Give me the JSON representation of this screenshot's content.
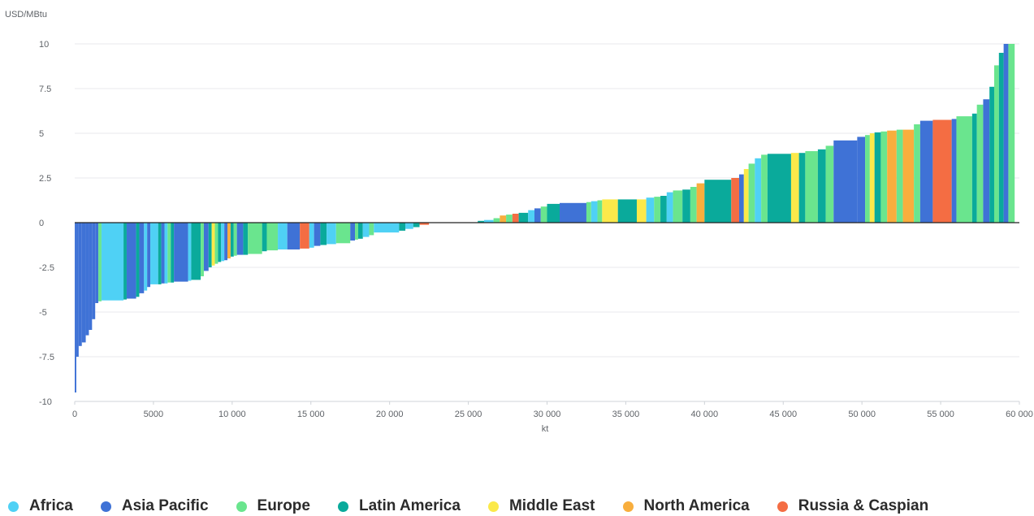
{
  "chart_data": {
    "type": "bar",
    "subtype": "supply-cost-curve",
    "ylabel": "USD/MBtu",
    "xlabel": "kt",
    "xlim": [
      0,
      60000
    ],
    "ylim": [
      -10,
      10
    ],
    "x_ticks": [
      0,
      5000,
      10000,
      15000,
      20000,
      25000,
      30000,
      35000,
      40000,
      45000,
      50000,
      55000,
      60000
    ],
    "x_tick_labels": [
      "0",
      "5000",
      "10 000",
      "15 000",
      "20 000",
      "25 000",
      "30 000",
      "35 000",
      "40 000",
      "45 000",
      "50 000",
      "55 000",
      "60 000"
    ],
    "y_ticks": [
      -10,
      -7.5,
      -5,
      -2.5,
      0,
      2.5,
      5,
      7.5,
      10
    ],
    "y_tick_labels": [
      "-10",
      "-7.5",
      "-5",
      "-2.5",
      "0",
      "2.5",
      "5",
      "7.5",
      "10"
    ],
    "grid": "horizontal",
    "legend_position": "bottom",
    "series": [
      {
        "name": "Africa",
        "color": "#4fd1f5"
      },
      {
        "name": "Asia Pacific",
        "color": "#3f72d6"
      },
      {
        "name": "Europe",
        "color": "#6ae58e"
      },
      {
        "name": "Latin America",
        "color": "#0aaa9b"
      },
      {
        "name": "Middle East",
        "color": "#fbe94a"
      },
      {
        "name": "North America",
        "color": "#f8ae3d"
      },
      {
        "name": "Russia & Caspian",
        "color": "#f46d43"
      }
    ],
    "bars": [
      {
        "x0": 0,
        "x1": 100,
        "y": -9.5,
        "region": "Asia Pacific"
      },
      {
        "x0": 100,
        "x1": 250,
        "y": -7.5,
        "region": "Asia Pacific"
      },
      {
        "x0": 250,
        "x1": 450,
        "y": -6.9,
        "region": "Asia Pacific"
      },
      {
        "x0": 450,
        "x1": 700,
        "y": -6.7,
        "region": "Asia Pacific"
      },
      {
        "x0": 700,
        "x1": 900,
        "y": -6.3,
        "region": "Asia Pacific"
      },
      {
        "x0": 900,
        "x1": 1100,
        "y": -6.0,
        "region": "Asia Pacific"
      },
      {
        "x0": 1100,
        "x1": 1300,
        "y": -5.4,
        "region": "Asia Pacific"
      },
      {
        "x0": 1300,
        "x1": 1500,
        "y": -4.5,
        "region": "Asia Pacific"
      },
      {
        "x0": 1500,
        "x1": 1700,
        "y": -4.4,
        "region": "Europe"
      },
      {
        "x0": 1700,
        "x1": 3100,
        "y": -4.35,
        "region": "Africa"
      },
      {
        "x0": 3100,
        "x1": 3300,
        "y": -4.3,
        "region": "Latin America"
      },
      {
        "x0": 3300,
        "x1": 3900,
        "y": -4.25,
        "region": "Asia Pacific"
      },
      {
        "x0": 3900,
        "x1": 4100,
        "y": -4.15,
        "region": "Latin America"
      },
      {
        "x0": 4100,
        "x1": 4400,
        "y": -3.95,
        "region": "Asia Pacific"
      },
      {
        "x0": 4400,
        "x1": 4600,
        "y": -3.8,
        "region": "Africa"
      },
      {
        "x0": 4600,
        "x1": 4800,
        "y": -3.6,
        "region": "Asia Pacific"
      },
      {
        "x0": 4800,
        "x1": 5300,
        "y": -3.45,
        "region": "Africa"
      },
      {
        "x0": 5300,
        "x1": 5500,
        "y": -3.45,
        "region": "Latin America"
      },
      {
        "x0": 5500,
        "x1": 5700,
        "y": -3.4,
        "region": "Asia Pacific"
      },
      {
        "x0": 5700,
        "x1": 5900,
        "y": -3.4,
        "region": "Africa"
      },
      {
        "x0": 5900,
        "x1": 6100,
        "y": -3.35,
        "region": "Europe"
      },
      {
        "x0": 6100,
        "x1": 6300,
        "y": -3.35,
        "region": "Latin America"
      },
      {
        "x0": 6300,
        "x1": 7200,
        "y": -3.3,
        "region": "Asia Pacific"
      },
      {
        "x0": 7200,
        "x1": 7400,
        "y": -3.25,
        "region": "Africa"
      },
      {
        "x0": 7400,
        "x1": 8000,
        "y": -3.2,
        "region": "Latin America"
      },
      {
        "x0": 8000,
        "x1": 8200,
        "y": -3.0,
        "region": "Europe"
      },
      {
        "x0": 8200,
        "x1": 8500,
        "y": -2.7,
        "region": "Asia Pacific"
      },
      {
        "x0": 8500,
        "x1": 8700,
        "y": -2.5,
        "region": "Latin America"
      },
      {
        "x0": 8700,
        "x1": 8900,
        "y": -2.4,
        "region": "Middle East"
      },
      {
        "x0": 8900,
        "x1": 9100,
        "y": -2.3,
        "region": "Europe"
      },
      {
        "x0": 9100,
        "x1": 9300,
        "y": -2.2,
        "region": "Latin America"
      },
      {
        "x0": 9300,
        "x1": 9500,
        "y": -2.15,
        "region": "Africa"
      },
      {
        "x0": 9500,
        "x1": 9700,
        "y": -2.1,
        "region": "Asia Pacific"
      },
      {
        "x0": 9700,
        "x1": 9900,
        "y": -2.0,
        "region": "North America"
      },
      {
        "x0": 9900,
        "x1": 10100,
        "y": -1.9,
        "region": "Latin America"
      },
      {
        "x0": 10100,
        "x1": 10300,
        "y": -1.85,
        "region": "Europe"
      },
      {
        "x0": 10300,
        "x1": 10700,
        "y": -1.8,
        "region": "Asia Pacific"
      },
      {
        "x0": 10700,
        "x1": 11000,
        "y": -1.8,
        "region": "Latin America"
      },
      {
        "x0": 11000,
        "x1": 11900,
        "y": -1.75,
        "region": "Europe"
      },
      {
        "x0": 11900,
        "x1": 12200,
        "y": -1.6,
        "region": "Latin America"
      },
      {
        "x0": 12200,
        "x1": 12900,
        "y": -1.55,
        "region": "Europe"
      },
      {
        "x0": 12900,
        "x1": 13500,
        "y": -1.5,
        "region": "Africa"
      },
      {
        "x0": 13500,
        "x1": 14300,
        "y": -1.5,
        "region": "Asia Pacific"
      },
      {
        "x0": 14300,
        "x1": 14900,
        "y": -1.45,
        "region": "Russia & Caspian"
      },
      {
        "x0": 14900,
        "x1": 15200,
        "y": -1.4,
        "region": "Africa"
      },
      {
        "x0": 15200,
        "x1": 15600,
        "y": -1.3,
        "region": "Asia Pacific"
      },
      {
        "x0": 15600,
        "x1": 16000,
        "y": -1.25,
        "region": "Latin America"
      },
      {
        "x0": 16000,
        "x1": 16600,
        "y": -1.2,
        "region": "Africa"
      },
      {
        "x0": 16600,
        "x1": 17500,
        "y": -1.15,
        "region": "Europe"
      },
      {
        "x0": 17500,
        "x1": 17800,
        "y": -1.0,
        "region": "Asia Pacific"
      },
      {
        "x0": 17800,
        "x1": 18000,
        "y": -0.95,
        "region": "Europe"
      },
      {
        "x0": 18000,
        "x1": 18300,
        "y": -0.9,
        "region": "Latin America"
      },
      {
        "x0": 18300,
        "x1": 18700,
        "y": -0.8,
        "region": "Africa"
      },
      {
        "x0": 18700,
        "x1": 19000,
        "y": -0.7,
        "region": "Europe"
      },
      {
        "x0": 19000,
        "x1": 20600,
        "y": -0.55,
        "region": "Africa"
      },
      {
        "x0": 20600,
        "x1": 21000,
        "y": -0.45,
        "region": "Latin America"
      },
      {
        "x0": 21000,
        "x1": 21500,
        "y": -0.35,
        "region": "Africa"
      },
      {
        "x0": 21500,
        "x1": 21900,
        "y": -0.25,
        "region": "Latin America"
      },
      {
        "x0": 21900,
        "x1": 22500,
        "y": -0.12,
        "region": "Russia & Caspian"
      },
      {
        "x0": 25600,
        "x1": 26000,
        "y": 0.1,
        "region": "Latin America"
      },
      {
        "x0": 26000,
        "x1": 26600,
        "y": 0.15,
        "region": "Africa"
      },
      {
        "x0": 26600,
        "x1": 27000,
        "y": 0.25,
        "region": "Europe"
      },
      {
        "x0": 27000,
        "x1": 27400,
        "y": 0.4,
        "region": "North America"
      },
      {
        "x0": 27400,
        "x1": 27800,
        "y": 0.45,
        "region": "Europe"
      },
      {
        "x0": 27800,
        "x1": 28200,
        "y": 0.5,
        "region": "Russia & Caspian"
      },
      {
        "x0": 28200,
        "x1": 28800,
        "y": 0.55,
        "region": "Latin America"
      },
      {
        "x0": 28800,
        "x1": 29200,
        "y": 0.7,
        "region": "Africa"
      },
      {
        "x0": 29200,
        "x1": 29600,
        "y": 0.8,
        "region": "Asia Pacific"
      },
      {
        "x0": 29600,
        "x1": 30000,
        "y": 0.9,
        "region": "Europe"
      },
      {
        "x0": 30000,
        "x1": 30800,
        "y": 1.05,
        "region": "Latin America"
      },
      {
        "x0": 30800,
        "x1": 32500,
        "y": 1.1,
        "region": "Asia Pacific"
      },
      {
        "x0": 32500,
        "x1": 32800,
        "y": 1.15,
        "region": "Europe"
      },
      {
        "x0": 32800,
        "x1": 33200,
        "y": 1.2,
        "region": "Africa"
      },
      {
        "x0": 33200,
        "x1": 33500,
        "y": 1.25,
        "region": "Europe"
      },
      {
        "x0": 33500,
        "x1": 34500,
        "y": 1.3,
        "region": "Middle East"
      },
      {
        "x0": 34500,
        "x1": 35700,
        "y": 1.3,
        "region": "Latin America"
      },
      {
        "x0": 35700,
        "x1": 36300,
        "y": 1.3,
        "region": "Middle East"
      },
      {
        "x0": 36300,
        "x1": 36800,
        "y": 1.4,
        "region": "Africa"
      },
      {
        "x0": 36800,
        "x1": 37200,
        "y": 1.45,
        "region": "Europe"
      },
      {
        "x0": 37200,
        "x1": 37600,
        "y": 1.5,
        "region": "Latin America"
      },
      {
        "x0": 37600,
        "x1": 38000,
        "y": 1.7,
        "region": "Africa"
      },
      {
        "x0": 38000,
        "x1": 38600,
        "y": 1.8,
        "region": "Europe"
      },
      {
        "x0": 38600,
        "x1": 39100,
        "y": 1.85,
        "region": "Latin America"
      },
      {
        "x0": 39100,
        "x1": 39500,
        "y": 2.0,
        "region": "Europe"
      },
      {
        "x0": 39500,
        "x1": 40000,
        "y": 2.2,
        "region": "North America"
      },
      {
        "x0": 40000,
        "x1": 41700,
        "y": 2.4,
        "region": "Latin America"
      },
      {
        "x0": 41700,
        "x1": 42200,
        "y": 2.5,
        "region": "Russia & Caspian"
      },
      {
        "x0": 42200,
        "x1": 42500,
        "y": 2.7,
        "region": "Asia Pacific"
      },
      {
        "x0": 42500,
        "x1": 42800,
        "y": 3.0,
        "region": "Middle East"
      },
      {
        "x0": 42800,
        "x1": 43200,
        "y": 3.3,
        "region": "Europe"
      },
      {
        "x0": 43200,
        "x1": 43600,
        "y": 3.6,
        "region": "Africa"
      },
      {
        "x0": 43600,
        "x1": 44000,
        "y": 3.8,
        "region": "Europe"
      },
      {
        "x0": 44000,
        "x1": 45500,
        "y": 3.85,
        "region": "Latin America"
      },
      {
        "x0": 45500,
        "x1": 46000,
        "y": 3.9,
        "region": "Middle East"
      },
      {
        "x0": 46000,
        "x1": 46400,
        "y": 3.9,
        "region": "Latin America"
      },
      {
        "x0": 46400,
        "x1": 47200,
        "y": 4.0,
        "region": "Europe"
      },
      {
        "x0": 47200,
        "x1": 47700,
        "y": 4.1,
        "region": "Latin America"
      },
      {
        "x0": 47700,
        "x1": 48200,
        "y": 4.3,
        "region": "Europe"
      },
      {
        "x0": 48200,
        "x1": 49700,
        "y": 4.6,
        "region": "Asia Pacific"
      },
      {
        "x0": 49700,
        "x1": 50200,
        "y": 4.8,
        "region": "Asia Pacific"
      },
      {
        "x0": 50200,
        "x1": 50500,
        "y": 4.9,
        "region": "Europe"
      },
      {
        "x0": 50500,
        "x1": 50800,
        "y": 5.0,
        "region": "Middle East"
      },
      {
        "x0": 50800,
        "x1": 51200,
        "y": 5.05,
        "region": "Latin America"
      },
      {
        "x0": 51200,
        "x1": 51600,
        "y": 5.1,
        "region": "Europe"
      },
      {
        "x0": 51600,
        "x1": 52200,
        "y": 5.15,
        "region": "North America"
      },
      {
        "x0": 52200,
        "x1": 52600,
        "y": 5.2,
        "region": "Europe"
      },
      {
        "x0": 52600,
        "x1": 53300,
        "y": 5.2,
        "region": "North America"
      },
      {
        "x0": 53300,
        "x1": 53700,
        "y": 5.5,
        "region": "Europe"
      },
      {
        "x0": 53700,
        "x1": 54500,
        "y": 5.7,
        "region": "Asia Pacific"
      },
      {
        "x0": 54500,
        "x1": 55700,
        "y": 5.75,
        "region": "Russia & Caspian"
      },
      {
        "x0": 55700,
        "x1": 56000,
        "y": 5.8,
        "region": "Asia Pacific"
      },
      {
        "x0": 56000,
        "x1": 57000,
        "y": 5.95,
        "region": "Europe"
      },
      {
        "x0": 57000,
        "x1": 57300,
        "y": 6.1,
        "region": "Latin America"
      },
      {
        "x0": 57300,
        "x1": 57700,
        "y": 6.6,
        "region": "Europe"
      },
      {
        "x0": 57700,
        "x1": 58100,
        "y": 6.9,
        "region": "Asia Pacific"
      },
      {
        "x0": 58100,
        "x1": 58400,
        "y": 7.6,
        "region": "Latin America"
      },
      {
        "x0": 58400,
        "x1": 58700,
        "y": 8.8,
        "region": "Europe"
      },
      {
        "x0": 58700,
        "x1": 59000,
        "y": 9.5,
        "region": "Latin America"
      },
      {
        "x0": 59000,
        "x1": 59300,
        "y": 10,
        "region": "Asia Pacific"
      },
      {
        "x0": 59300,
        "x1": 59700,
        "y": 10,
        "region": "Europe"
      }
    ]
  }
}
